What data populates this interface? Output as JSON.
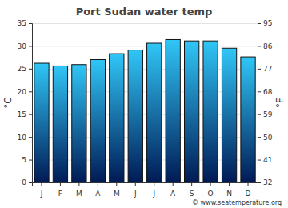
{
  "chart_data": {
    "type": "bar",
    "title": "Port Sudan water temp",
    "categories": [
      "J",
      "F",
      "M",
      "A",
      "M",
      "J",
      "J",
      "A",
      "S",
      "O",
      "N",
      "D"
    ],
    "values": [
      26.2,
      25.6,
      25.9,
      27.0,
      28.3,
      29.1,
      30.6,
      31.4,
      31.1,
      31.1,
      29.5,
      27.6
    ],
    "color": "#30c6f7",
    "ylabel": "°C",
    "y2label": "°F",
    "ylim": [
      0,
      35
    ],
    "yticks": [
      0,
      5,
      10,
      15,
      20,
      25,
      30,
      35
    ],
    "y2lim": [
      32,
      95
    ],
    "y2ticks": [
      32,
      41,
      50,
      59,
      68,
      77,
      86,
      95
    ],
    "grid": true,
    "footer": "© www.seatemperature.org"
  }
}
